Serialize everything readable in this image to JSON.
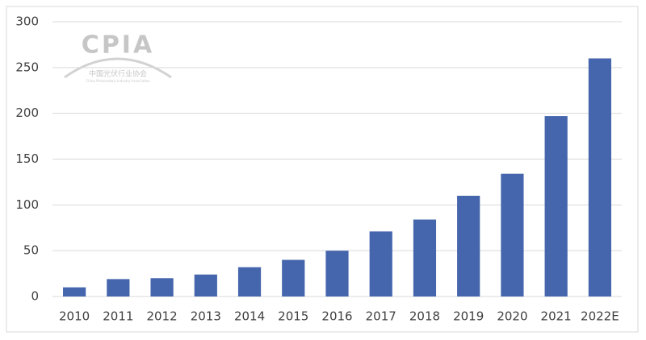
{
  "watermark": {
    "logo": "CPIA",
    "name": "中国光伏行业协会",
    "subname": "China Photovoltaic Industry Association"
  },
  "chart_data": {
    "type": "bar",
    "categories": [
      "2010",
      "2011",
      "2012",
      "2013",
      "2014",
      "2015",
      "2016",
      "2017",
      "2018",
      "2019",
      "2020",
      "2021",
      "2022E"
    ],
    "values": [
      10,
      19,
      20,
      24,
      32,
      40,
      50,
      71,
      84,
      110,
      134,
      197,
      260
    ],
    "color": "#4565ad",
    "ylim": [
      0,
      300
    ],
    "yticks": [
      0,
      50,
      100,
      150,
      200,
      250,
      300
    ],
    "grid": true
  }
}
